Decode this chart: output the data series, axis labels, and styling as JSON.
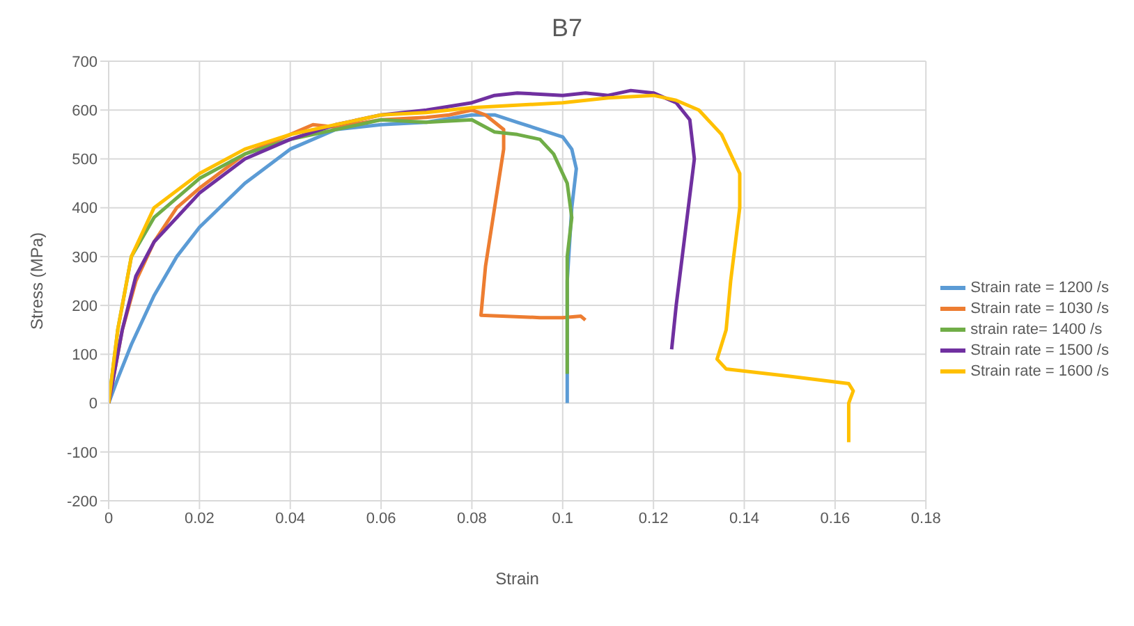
{
  "chart_data": {
    "type": "line",
    "title": "B7",
    "xlabel": "Strain",
    "ylabel": "Stress (MPa)",
    "xlim": [
      0,
      0.18
    ],
    "xticks": [
      0,
      0.02,
      0.04,
      0.06,
      0.08,
      0.1,
      0.12,
      0.14,
      0.16,
      0.18
    ],
    "ylim": [
      -200,
      700
    ],
    "yticks": [
      -200,
      -100,
      0,
      100,
      200,
      300,
      400,
      500,
      600,
      700
    ],
    "grid": true,
    "legend": "right",
    "marker": "none",
    "line_style": "solid",
    "series": [
      {
        "name": "Strain rate = 1200 /s",
        "color": "#5b9bd5",
        "x": [
          0,
          0.002,
          0.005,
          0.01,
          0.015,
          0.02,
          0.03,
          0.04,
          0.05,
          0.06,
          0.07,
          0.08,
          0.085,
          0.09,
          0.095,
          0.1,
          0.102,
          0.103,
          0.102,
          0.101,
          0.101
        ],
        "values": [
          0,
          50,
          120,
          220,
          300,
          360,
          450,
          520,
          560,
          570,
          575,
          590,
          590,
          575,
          560,
          545,
          520,
          480,
          400,
          250,
          0
        ]
      },
      {
        "name": "Strain rate = 1030 /s",
        "color": "#ed7d31",
        "x": [
          0,
          0.003,
          0.006,
          0.01,
          0.015,
          0.02,
          0.03,
          0.04,
          0.045,
          0.05,
          0.06,
          0.07,
          0.075,
          0.08,
          0.083,
          0.087,
          0.087,
          0.085,
          0.083,
          0.082,
          0.095,
          0.1,
          0.104,
          0.105
        ],
        "values": [
          0,
          150,
          250,
          330,
          400,
          440,
          510,
          550,
          570,
          565,
          580,
          585,
          590,
          600,
          590,
          560,
          520,
          400,
          280,
          180,
          175,
          175,
          178,
          170
        ]
      },
      {
        "name": "strain rate= 1400 /s",
        "color": "#70ad47",
        "x": [
          0,
          0.002,
          0.005,
          0.01,
          0.02,
          0.03,
          0.04,
          0.05,
          0.06,
          0.07,
          0.08,
          0.085,
          0.09,
          0.095,
          0.098,
          0.101,
          0.102,
          0.101,
          0.101,
          0.101
        ],
        "values": [
          0,
          150,
          300,
          380,
          460,
          510,
          540,
          560,
          580,
          575,
          580,
          555,
          550,
          540,
          510,
          450,
          380,
          300,
          200,
          60
        ]
      },
      {
        "name": "Strain rate = 1500 /s",
        "color": "#7030a0",
        "x": [
          0,
          0.003,
          0.006,
          0.01,
          0.02,
          0.03,
          0.04,
          0.05,
          0.06,
          0.07,
          0.08,
          0.085,
          0.09,
          0.1,
          0.105,
          0.11,
          0.115,
          0.12,
          0.125,
          0.128,
          0.129,
          0.127,
          0.125,
          0.124
        ],
        "values": [
          0,
          150,
          260,
          330,
          430,
          500,
          540,
          570,
          590,
          600,
          615,
          630,
          635,
          630,
          635,
          630,
          640,
          635,
          615,
          580,
          500,
          350,
          200,
          110
        ]
      },
      {
        "name": "Strain rate = 1600 /s",
        "color": "#ffc000",
        "x": [
          0,
          0.002,
          0.005,
          0.01,
          0.02,
          0.03,
          0.04,
          0.05,
          0.06,
          0.07,
          0.08,
          0.1,
          0.11,
          0.12,
          0.125,
          0.13,
          0.135,
          0.139,
          0.139,
          0.137,
          0.136,
          0.134,
          0.136,
          0.15,
          0.163,
          0.164,
          0.163,
          0.163
        ],
        "values": [
          0,
          150,
          300,
          400,
          470,
          520,
          550,
          570,
          590,
          595,
          605,
          615,
          625,
          630,
          620,
          600,
          550,
          470,
          400,
          250,
          150,
          90,
          70,
          55,
          40,
          25,
          0,
          -80
        ]
      }
    ]
  }
}
